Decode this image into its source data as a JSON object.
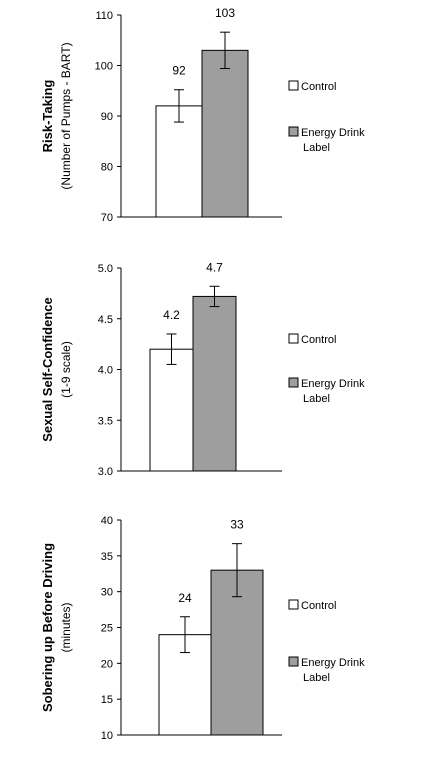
{
  "chart_data": [
    {
      "type": "bar",
      "ylabel": [
        "Risk-Taking",
        "(Number of Pumps - BART)"
      ],
      "ylim": [
        70,
        110
      ],
      "yticks": [
        "70",
        "80",
        "90",
        "100",
        "110"
      ],
      "series": [
        {
          "name": "Control",
          "value": 92,
          "label": "92",
          "error": [
            88.8,
            95.2
          ],
          "color": "#ffffff"
        },
        {
          "name": "Energy Drink Label",
          "name_lines": [
            "Energy Drink",
            "Label"
          ],
          "value": 103,
          "label": "103",
          "error": [
            99.4,
            106.6
          ],
          "color": "#9e9e9e"
        }
      ],
      "legend": "right",
      "grid": false
    },
    {
      "type": "bar",
      "ylabel": [
        "Sexual Self-Confidence",
        "(1-9 scale)"
      ],
      "ylim": [
        3.0,
        5.0
      ],
      "yticks": [
        "3.0",
        "3.5",
        "4.0",
        "4.5",
        "5.0"
      ],
      "series": [
        {
          "name": "Control",
          "value": 4.2,
          "label": "4.2",
          "error": [
            4.05,
            4.35
          ],
          "color": "#ffffff"
        },
        {
          "name": "Energy Drink Label",
          "name_lines": [
            "Energy Drink",
            "Label"
          ],
          "value": 4.72,
          "label": "4.7",
          "error": [
            4.62,
            4.82
          ],
          "color": "#9e9e9e"
        }
      ],
      "legend": "right",
      "grid": false
    },
    {
      "type": "bar",
      "ylabel": [
        "Sobering up Before Driving",
        "(minutes)"
      ],
      "ylim": [
        10,
        40
      ],
      "yticks": [
        "10",
        "15",
        "20",
        "25",
        "30",
        "35",
        "40"
      ],
      "series": [
        {
          "name": "Control",
          "value": 24,
          "label": "24",
          "error": [
            21.5,
            26.5
          ],
          "color": "#ffffff"
        },
        {
          "name": "Energy Drink Label",
          "name_lines": [
            "Energy Drink",
            "Label"
          ],
          "value": 33,
          "label": "33",
          "error": [
            29.3,
            36.7
          ],
          "color": "#9e9e9e"
        }
      ],
      "legend": "right",
      "grid": false
    }
  ]
}
